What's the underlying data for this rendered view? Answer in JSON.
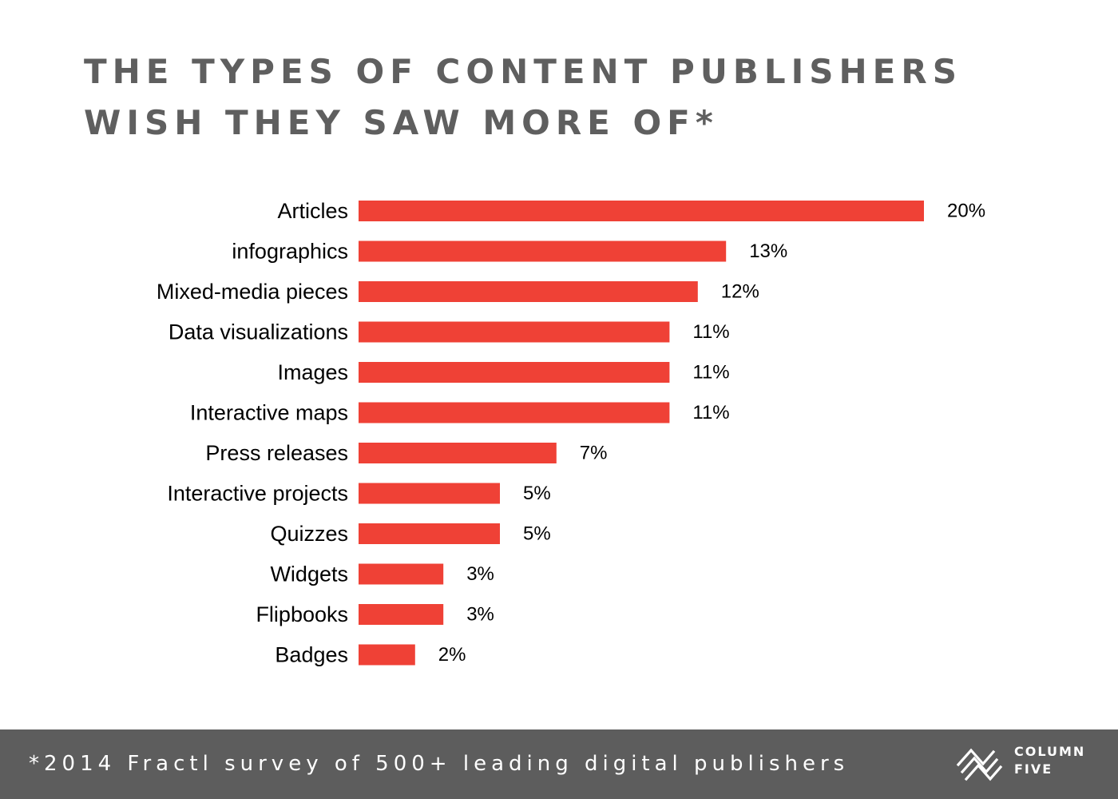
{
  "title": {
    "line1": "THE TYPES OF CONTENT PUBLISHERS",
    "line2": "WISH THEY SAW MORE OF*"
  },
  "chart_data": {
    "type": "bar",
    "orientation": "horizontal",
    "categories": [
      "Articles",
      "infographics",
      "Mixed-media pieces",
      "Data visualizations",
      "Images",
      "Interactive maps",
      "Press releases",
      "Interactive projects",
      "Quizzes",
      "Widgets",
      "Flipbooks",
      "Badges"
    ],
    "values": [
      20,
      13,
      12,
      11,
      11,
      11,
      7,
      5,
      5,
      3,
      3,
      2
    ],
    "value_labels": [
      "20%",
      "13%",
      "12%",
      "11%",
      "11%",
      "11%",
      "7%",
      "5%",
      "5%",
      "3%",
      "3%",
      "2%"
    ],
    "xlim": [
      0,
      20
    ],
    "grid": false,
    "legend": "none",
    "bar_color": "#ef4136",
    "label_color": "#000000"
  },
  "footer": {
    "note": "*2014 Fractl survey of 500+ leading digital publishers",
    "brand_line1": "COLUMN",
    "brand_line2": "FIVE",
    "background_color": "#5d5d5d",
    "text_color": "#ffffff"
  }
}
